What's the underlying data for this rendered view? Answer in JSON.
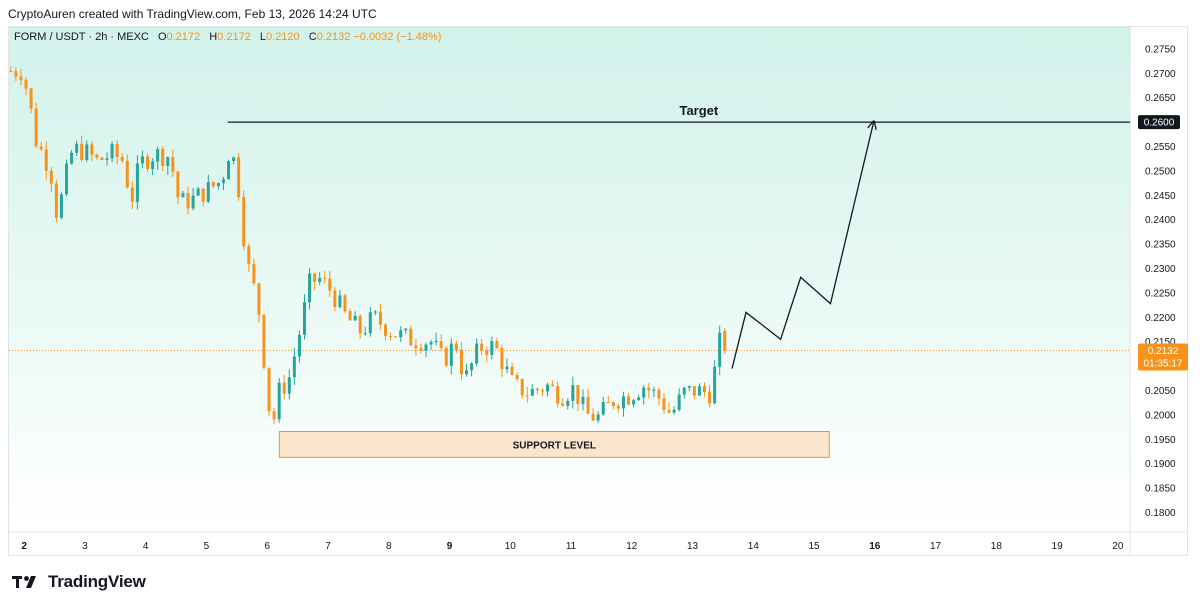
{
  "header": {
    "credit": "CryptoAuren created with TradingView.com, Feb 13, 2026 14:24 UTC"
  },
  "legend": {
    "symbol": "FORM / USDT · 2h · MEXC",
    "o_label": "O",
    "o": "0.2172",
    "h_label": "H",
    "h": "0.2172",
    "l_label": "L",
    "l": "0.2120",
    "c_label": "C",
    "c": "0.2132",
    "change": "−0.0032 (−1.48%)"
  },
  "annotations": {
    "target_label": "Target",
    "target_price": "0.2600",
    "support_label": "SUPPORT LEVEL",
    "current_price": "0.2132",
    "countdown": "01:35:17"
  },
  "brand": {
    "logo_text": "TradingView"
  },
  "colors": {
    "up": "#26a69a",
    "down": "#f7931a",
    "background_top": "#d1f2ea",
    "background_bottom": "#ffffff",
    "support_fill": "#fbe6cc",
    "support_stroke": "#f7931a"
  },
  "chart_data": {
    "type": "candlestick",
    "ylim": [
      0.176,
      0.2795
    ],
    "yticks": [
      "0.2750",
      "0.2700",
      "0.2650",
      "0.2600",
      "0.2550",
      "0.2500",
      "0.2450",
      "0.2400",
      "0.2350",
      "0.2300",
      "0.2250",
      "0.2200",
      "0.2150",
      "0.2100",
      "0.2050",
      "0.2000",
      "0.1950",
      "0.1900",
      "0.1850",
      "0.1800"
    ],
    "xlim": [
      1.75,
      20.2
    ],
    "xticks": [
      {
        "x": 2,
        "label": "2",
        "bold": true
      },
      {
        "x": 3,
        "label": "3",
        "bold": false
      },
      {
        "x": 4,
        "label": "4",
        "bold": false
      },
      {
        "x": 5,
        "label": "5",
        "bold": false
      },
      {
        "x": 6,
        "label": "6",
        "bold": false
      },
      {
        "x": 7,
        "label": "7",
        "bold": false
      },
      {
        "x": 8,
        "label": "8",
        "bold": false
      },
      {
        "x": 9,
        "label": "9",
        "bold": true
      },
      {
        "x": 10,
        "label": "10",
        "bold": false
      },
      {
        "x": 11,
        "label": "11",
        "bold": false
      },
      {
        "x": 12,
        "label": "12",
        "bold": false
      },
      {
        "x": 13,
        "label": "13",
        "bold": false
      },
      {
        "x": 14,
        "label": "14",
        "bold": false
      },
      {
        "x": 15,
        "label": "15",
        "bold": false
      },
      {
        "x": 16,
        "label": "16",
        "bold": true
      },
      {
        "x": 17,
        "label": "17",
        "bold": false
      },
      {
        "x": 18,
        "label": "18",
        "bold": false
      },
      {
        "x": 19,
        "label": "19",
        "bold": false
      },
      {
        "x": 20,
        "label": "20",
        "bold": false
      }
    ],
    "target_level": 0.26,
    "target_start_x": 5.35,
    "current_price": 0.2132,
    "support_zone": {
      "x_start": 6.2,
      "x_end": 15.25,
      "y_low": 0.1913,
      "y_high": 0.1966
    },
    "projection_path": [
      {
        "x": 13.65,
        "y": 0.2095
      },
      {
        "x": 13.88,
        "y": 0.221
      },
      {
        "x": 14.45,
        "y": 0.2155
      },
      {
        "x": 14.78,
        "y": 0.2282
      },
      {
        "x": 15.27,
        "y": 0.2228
      },
      {
        "x": 15.98,
        "y": 0.26
      }
    ],
    "candle_anchors": [
      {
        "x": 1.78,
        "y": 0.2705
      },
      {
        "x": 1.95,
        "y": 0.2705
      },
      {
        "x": 2.05,
        "y": 0.2665
      },
      {
        "x": 2.2,
        "y": 0.256
      },
      {
        "x": 2.35,
        "y": 0.2525
      },
      {
        "x": 2.45,
        "y": 0.249
      },
      {
        "x": 2.55,
        "y": 0.24
      },
      {
        "x": 2.65,
        "y": 0.247
      },
      {
        "x": 2.8,
        "y": 0.2545
      },
      {
        "x": 3.0,
        "y": 0.254
      },
      {
        "x": 3.2,
        "y": 0.252
      },
      {
        "x": 3.45,
        "y": 0.2535
      },
      {
        "x": 3.65,
        "y": 0.252
      },
      {
        "x": 3.75,
        "y": 0.243
      },
      {
        "x": 3.9,
        "y": 0.2515
      },
      {
        "x": 4.15,
        "y": 0.2535
      },
      {
        "x": 4.4,
        "y": 0.253
      },
      {
        "x": 4.55,
        "y": 0.2435
      },
      {
        "x": 4.75,
        "y": 0.244
      },
      {
        "x": 5.0,
        "y": 0.246
      },
      {
        "x": 5.25,
        "y": 0.248
      },
      {
        "x": 5.4,
        "y": 0.2555
      },
      {
        "x": 5.55,
        "y": 0.245
      },
      {
        "x": 5.65,
        "y": 0.232
      },
      {
        "x": 5.78,
        "y": 0.226
      },
      {
        "x": 5.9,
        "y": 0.219
      },
      {
        "x": 6.0,
        "y": 0.203
      },
      {
        "x": 6.1,
        "y": 0.1985
      },
      {
        "x": 6.2,
        "y": 0.205
      },
      {
        "x": 6.35,
        "y": 0.207
      },
      {
        "x": 6.5,
        "y": 0.215
      },
      {
        "x": 6.7,
        "y": 0.227
      },
      {
        "x": 6.85,
        "y": 0.228
      },
      {
        "x": 7.05,
        "y": 0.2255
      },
      {
        "x": 7.3,
        "y": 0.22
      },
      {
        "x": 7.55,
        "y": 0.217
      },
      {
        "x": 7.75,
        "y": 0.22
      },
      {
        "x": 8.05,
        "y": 0.217
      },
      {
        "x": 8.35,
        "y": 0.2155
      },
      {
        "x": 8.7,
        "y": 0.215
      },
      {
        "x": 8.9,
        "y": 0.211
      },
      {
        "x": 9.1,
        "y": 0.215
      },
      {
        "x": 9.25,
        "y": 0.207
      },
      {
        "x": 9.5,
        "y": 0.214
      },
      {
        "x": 9.75,
        "y": 0.214
      },
      {
        "x": 10.05,
        "y": 0.206
      },
      {
        "x": 10.3,
        "y": 0.2045
      },
      {
        "x": 10.6,
        "y": 0.206
      },
      {
        "x": 10.85,
        "y": 0.204
      },
      {
        "x": 11.05,
        "y": 0.2055
      },
      {
        "x": 11.25,
        "y": 0.2
      },
      {
        "x": 11.45,
        "y": 0.1995
      },
      {
        "x": 11.7,
        "y": 0.203
      },
      {
        "x": 11.95,
        "y": 0.204
      },
      {
        "x": 12.2,
        "y": 0.206
      },
      {
        "x": 12.45,
        "y": 0.2035
      },
      {
        "x": 12.65,
        "y": 0.2
      },
      {
        "x": 12.85,
        "y": 0.2045
      },
      {
        "x": 13.05,
        "y": 0.205
      },
      {
        "x": 13.3,
        "y": 0.2045
      },
      {
        "x": 13.45,
        "y": 0.215
      },
      {
        "x": 13.58,
        "y": 0.2132
      }
    ]
  }
}
